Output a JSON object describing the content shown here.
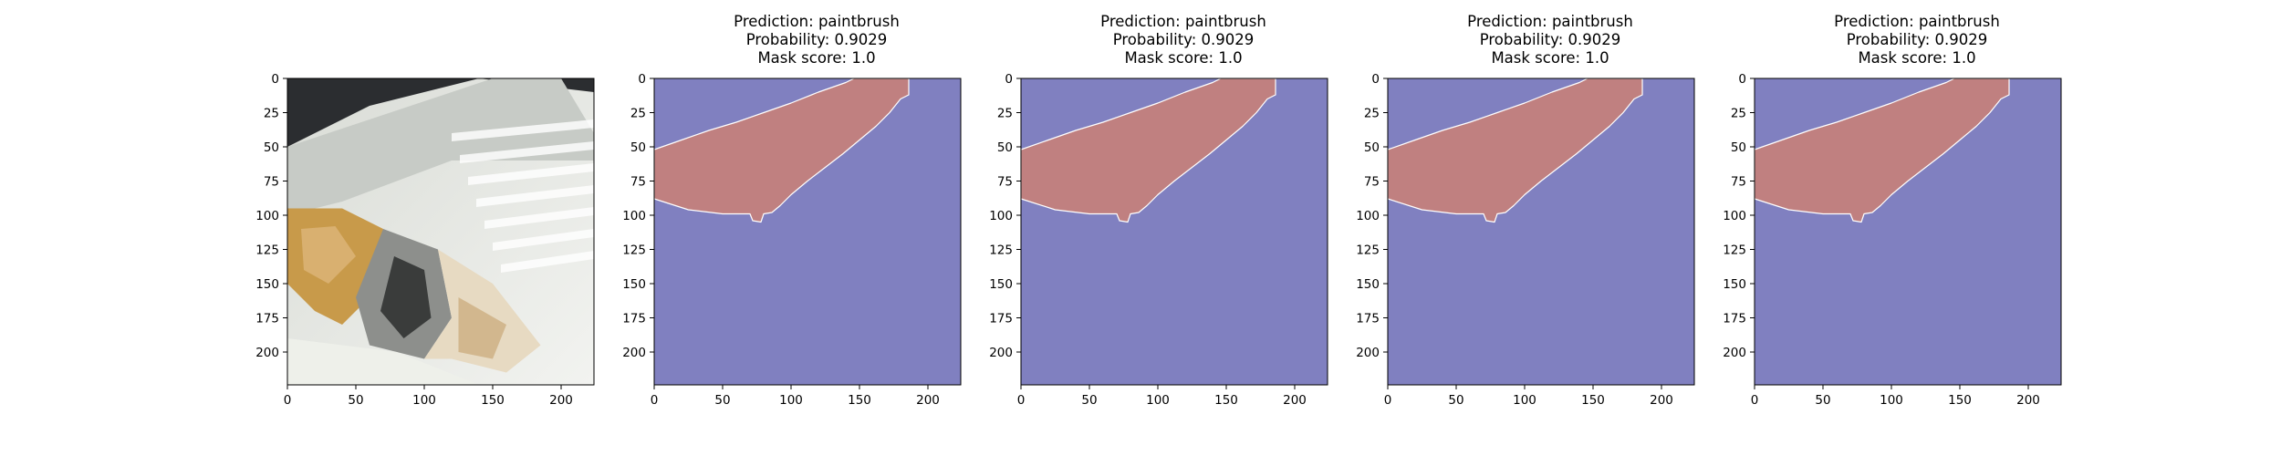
{
  "panels": [
    {
      "kind": "photo",
      "title_lines": []
    },
    {
      "kind": "mask",
      "title_lines": [
        "Prediction: paintbrush",
        "Probability: 0.9029",
        "Mask score: 1.0"
      ]
    },
    {
      "kind": "mask",
      "title_lines": [
        "Prediction: paintbrush",
        "Probability: 0.9029",
        "Mask score: 1.0"
      ]
    },
    {
      "kind": "mask",
      "title_lines": [
        "Prediction: paintbrush",
        "Probability: 0.9029",
        "Mask score: 1.0"
      ]
    },
    {
      "kind": "mask",
      "title_lines": [
        "Prediction: paintbrush",
        "Probability: 0.9029",
        "Mask score: 1.0"
      ]
    }
  ],
  "chart_data": {
    "type": "heatmap",
    "title": "",
    "xlabel": "",
    "ylabel": "",
    "xlim": [
      0,
      224
    ],
    "ylim": [
      224,
      0
    ],
    "x_ticks": [
      0,
      50,
      100,
      150,
      200
    ],
    "y_ticks": [
      0,
      25,
      50,
      75,
      100,
      125,
      150,
      175,
      200
    ],
    "grid": false,
    "colors": {
      "background": "#8080c0",
      "mask": "#c08080",
      "mask_edge": "#ffffff"
    },
    "mask_outline": [
      [
        0,
        52
      ],
      [
        20,
        45
      ],
      [
        40,
        38
      ],
      [
        60,
        32
      ],
      [
        80,
        25
      ],
      [
        100,
        18
      ],
      [
        120,
        10
      ],
      [
        140,
        3
      ],
      [
        146,
        0
      ],
      [
        186,
        0
      ],
      [
        186,
        12
      ],
      [
        180,
        15
      ],
      [
        172,
        25
      ],
      [
        162,
        35
      ],
      [
        150,
        45
      ],
      [
        138,
        55
      ],
      [
        125,
        65
      ],
      [
        112,
        75
      ],
      [
        100,
        85
      ],
      [
        92,
        93
      ],
      [
        86,
        98
      ],
      [
        80,
        99
      ],
      [
        78,
        105
      ],
      [
        72,
        104
      ],
      [
        70,
        99
      ],
      [
        50,
        99
      ],
      [
        25,
        96
      ],
      [
        0,
        88
      ]
    ]
  }
}
